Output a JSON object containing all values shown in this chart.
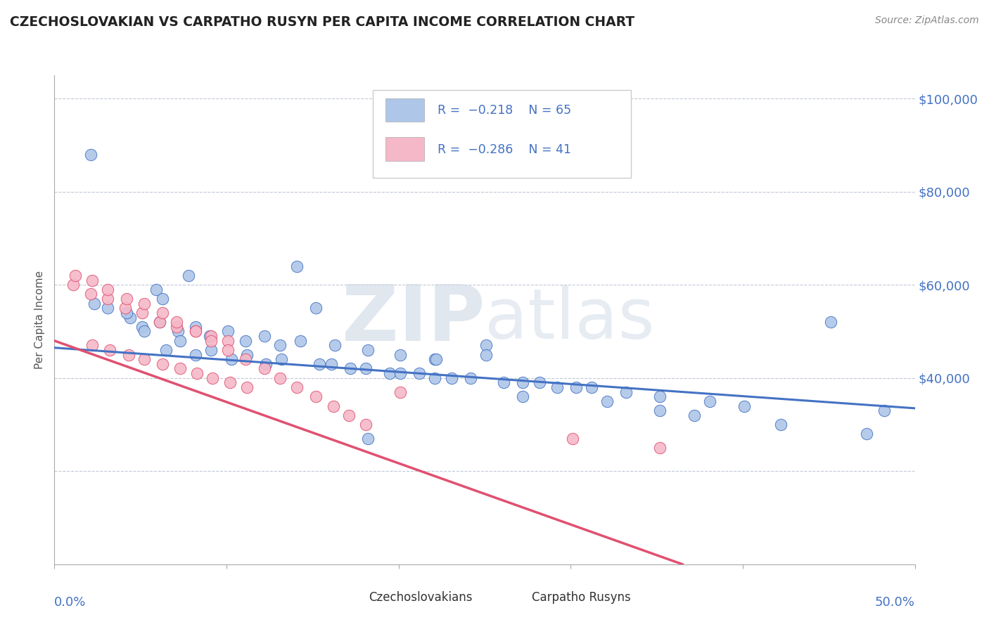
{
  "title": "CZECHOSLOVAKIAN VS CARPATHO RUSYN PER CAPITA INCOME CORRELATION CHART",
  "source": "Source: ZipAtlas.com",
  "ylabel": "Per Capita Income",
  "legend_R_blue": "R = −0.218",
  "legend_N_blue": "N = 65",
  "legend_R_pink": "R = −0.286",
  "legend_N_pink": "N = 41",
  "blue_color": "#aec6e8",
  "pink_color": "#f5b8c8",
  "blue_line_color": "#4472c4",
  "pink_line_color": "#e05070",
  "title_color": "#222222",
  "axis_label_color": "#4472c4",
  "grid_color": "#c0c8d8",
  "background_color": "#ffffff",
  "watermark_zip": "ZIP",
  "watermark_atlas": "atlas",
  "xlim": [
    0.0,
    0.5
  ],
  "ylim": [
    0,
    105000
  ],
  "blue_scatter_x": [
    0.021,
    0.141,
    0.078,
    0.059,
    0.063,
    0.044,
    0.051,
    0.072,
    0.09,
    0.111,
    0.131,
    0.065,
    0.082,
    0.103,
    0.123,
    0.154,
    0.172,
    0.195,
    0.212,
    0.231,
    0.251,
    0.272,
    0.292,
    0.312,
    0.332,
    0.031,
    0.052,
    0.073,
    0.091,
    0.112,
    0.132,
    0.161,
    0.181,
    0.201,
    0.221,
    0.242,
    0.261,
    0.282,
    0.303,
    0.352,
    0.381,
    0.401,
    0.451,
    0.482,
    0.023,
    0.042,
    0.061,
    0.082,
    0.101,
    0.122,
    0.143,
    0.163,
    0.182,
    0.201,
    0.221,
    0.272,
    0.321,
    0.372,
    0.422,
    0.472,
    0.152,
    0.251,
    0.352,
    0.222,
    0.182
  ],
  "blue_scatter_y": [
    88000,
    64000,
    62000,
    59000,
    57000,
    53000,
    51000,
    50000,
    49000,
    48000,
    47000,
    46000,
    45000,
    44000,
    43000,
    43000,
    42000,
    41000,
    41000,
    40000,
    47000,
    39000,
    38000,
    38000,
    37000,
    55000,
    50000,
    48000,
    46000,
    45000,
    44000,
    43000,
    42000,
    41000,
    40000,
    40000,
    39000,
    39000,
    38000,
    36000,
    35000,
    34000,
    52000,
    33000,
    56000,
    54000,
    52000,
    51000,
    50000,
    49000,
    48000,
    47000,
    46000,
    45000,
    44000,
    36000,
    35000,
    32000,
    30000,
    28000,
    55000,
    45000,
    33000,
    44000,
    27000
  ],
  "pink_scatter_x": [
    0.011,
    0.021,
    0.031,
    0.041,
    0.051,
    0.061,
    0.071,
    0.082,
    0.091,
    0.101,
    0.022,
    0.032,
    0.043,
    0.052,
    0.063,
    0.073,
    0.083,
    0.092,
    0.102,
    0.112,
    0.012,
    0.022,
    0.031,
    0.042,
    0.052,
    0.063,
    0.071,
    0.082,
    0.091,
    0.101,
    0.111,
    0.122,
    0.131,
    0.141,
    0.152,
    0.162,
    0.171,
    0.181,
    0.301,
    0.352,
    0.201
  ],
  "pink_scatter_y": [
    60000,
    58000,
    57000,
    55000,
    54000,
    52000,
    51000,
    50000,
    49000,
    48000,
    47000,
    46000,
    45000,
    44000,
    43000,
    42000,
    41000,
    40000,
    39000,
    38000,
    62000,
    61000,
    59000,
    57000,
    56000,
    54000,
    52000,
    50000,
    48000,
    46000,
    44000,
    42000,
    40000,
    38000,
    36000,
    34000,
    32000,
    30000,
    27000,
    25000,
    37000
  ],
  "blue_trend_x": [
    0.0,
    0.5
  ],
  "blue_trend_y": [
    46500,
    33500
  ],
  "pink_trend_x": [
    0.0,
    0.365
  ],
  "pink_trend_y": [
    48000,
    0
  ]
}
